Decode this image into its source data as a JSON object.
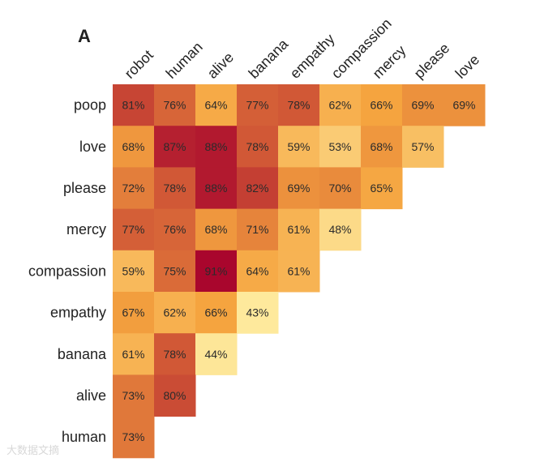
{
  "chart_data": {
    "type": "heatmap",
    "panel_label": "A",
    "title": "",
    "xlabel": "",
    "ylabel": "",
    "columns": [
      "robot",
      "human",
      "alive",
      "banana",
      "empathy",
      "compassion",
      "mercy",
      "please",
      "love"
    ],
    "rows": [
      "poop",
      "love",
      "please",
      "mercy",
      "compassion",
      "empathy",
      "banana",
      "alive",
      "human"
    ],
    "values": [
      [
        81,
        76,
        64,
        77,
        78,
        62,
        66,
        69,
        69
      ],
      [
        68,
        87,
        88,
        78,
        59,
        53,
        68,
        57
      ],
      [
        72,
        78,
        88,
        82,
        69,
        70,
        65
      ],
      [
        77,
        76,
        68,
        71,
        61,
        48
      ],
      [
        59,
        75,
        91,
        64,
        61
      ],
      [
        67,
        62,
        66,
        43
      ],
      [
        61,
        78,
        44
      ],
      [
        73,
        80
      ],
      [
        73
      ]
    ],
    "value_format": "percent",
    "color_scale": {
      "low_color": "#fff2a8",
      "mid_color": "#f5a43f",
      "high_color": "#a6002c",
      "range": [
        40,
        92
      ]
    }
  },
  "watermark": "大数据文摘"
}
